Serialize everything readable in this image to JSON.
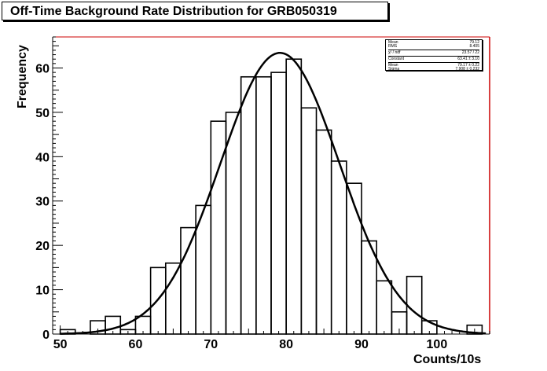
{
  "chart_data": {
    "type": "histogram",
    "title": "Off-Time Background Rate Distribution for GRB050319",
    "xlabel": "Counts/10s",
    "ylabel": "Frequency",
    "xlim": [
      49,
      107
    ],
    "ylim": [
      0,
      67
    ],
    "x_ticks": [
      50,
      60,
      70,
      80,
      90,
      100
    ],
    "y_ticks": [
      0,
      10,
      20,
      30,
      40,
      50,
      60
    ],
    "bin_width": 2,
    "bins": [
      {
        "x": 51,
        "value": 1
      },
      {
        "x": 53,
        "value": 0
      },
      {
        "x": 55,
        "value": 3
      },
      {
        "x": 57,
        "value": 4
      },
      {
        "x": 59,
        "value": 1
      },
      {
        "x": 61,
        "value": 4
      },
      {
        "x": 63,
        "value": 15
      },
      {
        "x": 65,
        "value": 16
      },
      {
        "x": 67,
        "value": 24
      },
      {
        "x": 69,
        "value": 29
      },
      {
        "x": 71,
        "value": 48
      },
      {
        "x": 73,
        "value": 50
      },
      {
        "x": 75,
        "value": 58
      },
      {
        "x": 77,
        "value": 58
      },
      {
        "x": 79,
        "value": 59
      },
      {
        "x": 81,
        "value": 62
      },
      {
        "x": 83,
        "value": 51
      },
      {
        "x": 85,
        "value": 46
      },
      {
        "x": 87,
        "value": 39
      },
      {
        "x": 89,
        "value": 34
      },
      {
        "x": 91,
        "value": 21
      },
      {
        "x": 93,
        "value": 12
      },
      {
        "x": 95,
        "value": 5
      },
      {
        "x": 97,
        "value": 13
      },
      {
        "x": 99,
        "value": 3
      },
      {
        "x": 101,
        "value": 0
      },
      {
        "x": 103,
        "value": 0
      },
      {
        "x": 105,
        "value": 2
      }
    ],
    "fit": {
      "function": "gaussian",
      "constant": 63.41,
      "mean": 79.17,
      "sigma": 7.908
    },
    "stats": [
      {
        "label": "Mean",
        "value": "79.12"
      },
      {
        "label": "RMS",
        "value": "8.405"
      },
      {
        "label": "χ² / ndf",
        "value": "23.57 / 22"
      },
      {
        "label": "Constant",
        "value": "63.41 ± 3.10"
      },
      {
        "label": "Mean",
        "value": "79.17 ± 0.22"
      },
      {
        "label": "Sigma",
        "value": "7.908 ± 0.232"
      }
    ]
  }
}
